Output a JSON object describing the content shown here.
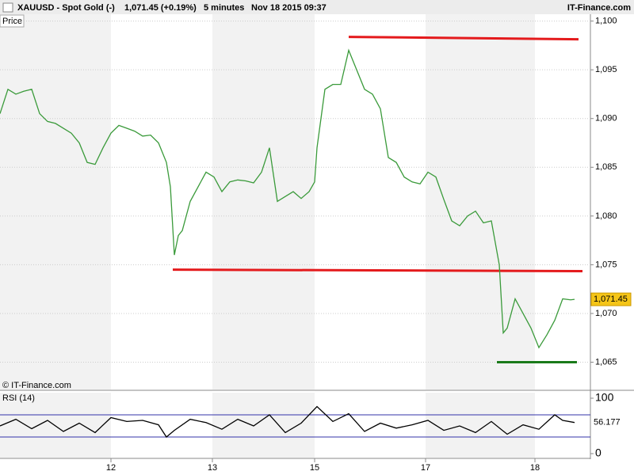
{
  "header": {
    "title": "XAUUSD - Spot Gold (-)",
    "quote": "1,071.45 (+0.19%)",
    "interval": "5 minutes",
    "datetime": "Nov 18 2015 09:37",
    "brand": "IT-Finance.com"
  },
  "chart_data": [
    {
      "type": "line",
      "title": "Price",
      "watermark": "© IT-Finance.com",
      "color": "#3a9a3a",
      "x": [
        0,
        2,
        4,
        6,
        8,
        10,
        12,
        14,
        16,
        18,
        20,
        22,
        24,
        26,
        28,
        30,
        32,
        34,
        36,
        38,
        40,
        42,
        43,
        44,
        45,
        46,
        48,
        50,
        52,
        54,
        56,
        58,
        60,
        62,
        64,
        66,
        68,
        70,
        72,
        74,
        76,
        78,
        79.4,
        80,
        81,
        82,
        84,
        86,
        88,
        90,
        92,
        94,
        96,
        98,
        100,
        102,
        104,
        106,
        108,
        110,
        112,
        114,
        116,
        118,
        120,
        122,
        124,
        126,
        127,
        128,
        130,
        132,
        134,
        136,
        138,
        140,
        142,
        144,
        145
      ],
      "series": [
        {
          "name": "XAUUSD",
          "color": "#3a9a3a",
          "values": [
            1090.5,
            1093,
            1092.5,
            1092.8,
            1093,
            1090.5,
            1089.7,
            1089.5,
            1089,
            1088.5,
            1087.5,
            1085.5,
            1085.3,
            1087,
            1088.5,
            1089.3,
            1089,
            1088.7,
            1088.2,
            1088.3,
            1087.5,
            1085.5,
            1083,
            1076,
            1078,
            1078.5,
            1081.5,
            1083,
            1084.5,
            1084,
            1082.5,
            1083.5,
            1083.7,
            1083.6,
            1083.4,
            1084.5,
            1087,
            1081.5,
            1082,
            1082.5,
            1081.8,
            1082.5,
            1083.5,
            1087,
            1090,
            1093,
            1093.5,
            1093.5,
            1097,
            1095,
            1093,
            1092.5,
            1091,
            1086,
            1085.5,
            1084,
            1083.5,
            1083.3,
            1084.5,
            1084,
            1081.7,
            1079.5,
            1079,
            1080,
            1080.5,
            1079.3,
            1079.5,
            1075,
            1068,
            1068.5,
            1071.5,
            1070,
            1068.5,
            1066.5,
            1067.8,
            1069.3,
            1071.5,
            1071.4,
            1071.45
          ]
        }
      ],
      "last_label": "1,071.45",
      "levels": [
        {
          "color": "#e41a1c",
          "x": [
            88,
            146
          ],
          "values": [
            1098.38,
            1098.13
          ]
        },
        {
          "color": "#e41a1c",
          "x": [
            43.6,
            147
          ],
          "values": [
            1074.5,
            1074.34
          ]
        },
        {
          "color": "#1a7a1a",
          "x": [
            125.4,
            145.6
          ],
          "values": [
            1065,
            1065
          ]
        }
      ],
      "xlim": [
        0,
        149
      ],
      "ylim": [
        1062.2,
        1100.7
      ],
      "xticks": [
        {
          "value": 28,
          "label": "12"
        },
        {
          "value": 53.6,
          "label": "13"
        },
        {
          "value": 79.4,
          "label": "15"
        },
        {
          "value": 107.4,
          "label": "17"
        },
        {
          "value": 135,
          "label": "18"
        }
      ],
      "yticks": [
        {
          "value": 1065,
          "label": "1,065"
        },
        {
          "value": 1070,
          "label": "1,070"
        },
        {
          "value": 1075,
          "label": "1,075"
        },
        {
          "value": 1080,
          "label": "1,080"
        },
        {
          "value": 1085,
          "label": "1,085"
        },
        {
          "value": 1090,
          "label": "1,090"
        },
        {
          "value": 1095,
          "label": "1,095"
        },
        {
          "value": 1100,
          "label": "1,100"
        }
      ],
      "grid": true
    },
    {
      "type": "line",
      "title": "RSI (14)",
      "color": "#000000",
      "x": [
        0,
        4,
        8,
        12,
        16,
        20,
        24,
        28,
        32,
        36,
        40,
        42,
        44,
        48,
        52,
        56,
        60,
        64,
        68,
        72,
        76,
        80,
        84,
        88,
        92,
        96,
        100,
        104,
        108,
        112,
        116,
        120,
        124,
        128,
        132,
        136,
        140,
        142,
        145
      ],
      "series": [
        {
          "name": "RSI",
          "color": "#000000",
          "values": [
            50,
            62,
            45,
            60,
            40,
            55,
            38,
            65,
            58,
            60,
            52,
            30,
            42,
            62,
            56,
            44,
            62,
            50,
            70,
            38,
            55,
            85,
            58,
            72,
            40,
            55,
            46,
            52,
            60,
            42,
            50,
            38,
            58,
            35,
            52,
            44,
            70,
            60,
            56.177
          ]
        }
      ],
      "last_label": "56.177",
      "bands": [
        {
          "color": "#3333aa",
          "value": 70
        },
        {
          "color": "#3333aa",
          "value": 30
        }
      ],
      "xlim": [
        0,
        149
      ],
      "ylim": [
        0,
        100
      ],
      "yticks": [
        0,
        100
      ]
    }
  ]
}
